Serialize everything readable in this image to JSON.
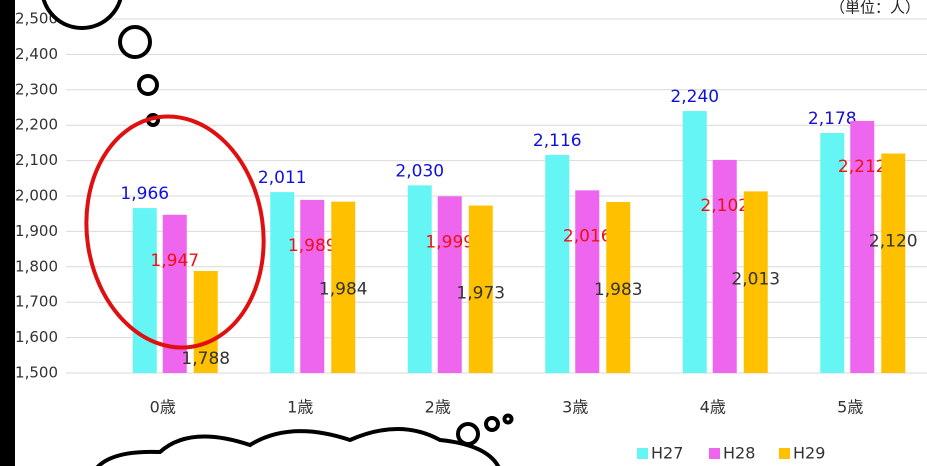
{
  "chart_data": {
    "type": "bar",
    "unit_label": "（単位：人）",
    "categories": [
      "0歳",
      "1歳",
      "2歳",
      "3歳",
      "4歳",
      "5歳"
    ],
    "series": [
      {
        "name": "H27",
        "color": "#66f5f5",
        "label_color": "#1010dd",
        "values": [
          1966,
          2011,
          2030,
          2116,
          2240,
          2178
        ],
        "value_labels": [
          "1,966",
          "2,011",
          "2,030",
          "2,116",
          "2,240",
          "2,178"
        ]
      },
      {
        "name": "H28",
        "color": "#ee66ee",
        "label_color": "#ee1111",
        "values": [
          1947,
          1989,
          1999,
          2016,
          2102,
          2212
        ],
        "value_labels": [
          "1,947",
          "1,989",
          "1,999",
          "2,016",
          "2,102",
          "2,212"
        ]
      },
      {
        "name": "H29",
        "color": "#ffc000",
        "label_color": "#333333",
        "values": [
          1788,
          1984,
          1973,
          1983,
          2013,
          2120
        ],
        "value_labels": [
          "1,788",
          "1,984",
          "1,973",
          "1,983",
          "2,013",
          "2,120"
        ]
      }
    ],
    "ylim": [
      1500,
      2500
    ],
    "yticks": [
      {
        "value": 1500,
        "label": "1,500"
      },
      {
        "value": 1600,
        "label": "1,600"
      },
      {
        "value": 1700,
        "label": "1,700"
      },
      {
        "value": 1800,
        "label": "1,800"
      },
      {
        "value": 1900,
        "label": "1,900"
      },
      {
        "value": 2000,
        "label": "2,000"
      },
      {
        "value": 2100,
        "label": "2,100"
      },
      {
        "value": 2200,
        "label": "2,200"
      },
      {
        "value": 2300,
        "label": "2,300"
      },
      {
        "value": 2400,
        "label": "2,400"
      },
      {
        "value": 2500,
        "label": "2,500"
      }
    ],
    "grid": true,
    "legend": "bottom-right"
  }
}
